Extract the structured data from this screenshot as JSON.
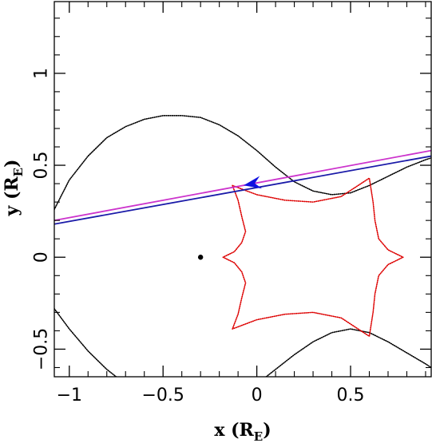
{
  "chart_data": {
    "type": "line",
    "title": "",
    "xlabel": "x (R_E)",
    "ylabel": "y (R_E)",
    "xlabel_parts": {
      "main": "x (R",
      "sub": "E",
      "close": ")"
    },
    "ylabel_parts": {
      "main": "y (R",
      "sub": "E",
      "close": ")"
    },
    "xlim": [
      -1.08,
      0.93
    ],
    "ylim": [
      -0.65,
      1.39
    ],
    "xticks": [
      {
        "value": -1,
        "label": "−1"
      },
      {
        "value": -0.5,
        "label": "−0.5"
      },
      {
        "value": 0,
        "label": "0"
      },
      {
        "value": 0.5,
        "label": "0.5"
      }
    ],
    "yticks": [
      {
        "value": -0.5,
        "label": "−0.5"
      },
      {
        "value": 0,
        "label": "0"
      },
      {
        "value": 0.5,
        "label": "0.5"
      },
      {
        "value": 1,
        "label": "1"
      }
    ],
    "grid": false,
    "legend": "none",
    "series": [
      {
        "id": "critical-curve-upper",
        "color": "#000000",
        "style": "dotted-line",
        "x": [
          -1.08,
          -1.0,
          -0.9,
          -0.8,
          -0.7,
          -0.6,
          -0.5,
          -0.4,
          -0.3,
          -0.2,
          -0.1,
          0.0,
          0.1,
          0.2,
          0.3,
          0.4,
          0.5,
          0.6,
          0.7,
          0.8,
          0.9,
          0.93
        ],
        "y": [
          0.26,
          0.42,
          0.55,
          0.65,
          0.71,
          0.75,
          0.77,
          0.77,
          0.76,
          0.72,
          0.66,
          0.58,
          0.49,
          0.41,
          0.36,
          0.34,
          0.35,
          0.39,
          0.44,
          0.49,
          0.53,
          0.54
        ]
      },
      {
        "id": "critical-curve-lower-right",
        "color": "#000000",
        "style": "dotted-line",
        "x": [
          0.05,
          0.1,
          0.2,
          0.3,
          0.4,
          0.5,
          0.6,
          0.7,
          0.8,
          0.9,
          0.93
        ],
        "y": [
          -0.65,
          -0.61,
          -0.53,
          -0.46,
          -0.41,
          -0.39,
          -0.41,
          -0.46,
          -0.52,
          -0.58,
          -0.6
        ]
      },
      {
        "id": "critical-curve-lower-left",
        "color": "#000000",
        "style": "dotted-line",
        "x": [
          -1.08,
          -1.0,
          -0.9,
          -0.8,
          -0.75
        ],
        "y": [
          -0.28,
          -0.39,
          -0.51,
          -0.61,
          -0.65
        ]
      },
      {
        "id": "caustic",
        "color": "#dd0000",
        "style": "dotted-line",
        "x": [
          -0.13,
          -0.1,
          -0.08,
          -0.06,
          -0.08,
          -0.12,
          -0.18,
          -0.12,
          -0.08,
          -0.06,
          -0.08,
          -0.1,
          -0.13,
          0.0,
          0.15,
          0.3,
          0.45,
          0.6,
          0.62,
          0.63,
          0.65,
          0.7,
          0.78,
          0.7,
          0.65,
          0.63,
          0.62,
          0.6,
          0.45,
          0.3,
          0.15,
          0.0,
          -0.13
        ],
        "y": [
          0.39,
          0.31,
          0.22,
          0.14,
          0.08,
          0.03,
          0.0,
          -0.03,
          -0.08,
          -0.14,
          -0.22,
          -0.31,
          -0.39,
          -0.34,
          -0.31,
          -0.3,
          -0.33,
          -0.43,
          -0.3,
          -0.2,
          -0.1,
          -0.04,
          0.0,
          0.04,
          0.1,
          0.2,
          0.3,
          0.43,
          0.33,
          0.3,
          0.31,
          0.34,
          0.39
        ]
      },
      {
        "id": "trajectory-magenta",
        "color": "#cc33cc",
        "style": "line",
        "x": [
          -1.08,
          0.93
        ],
        "y": [
          0.2,
          0.58
        ]
      },
      {
        "id": "trajectory-blue",
        "color": "#1a1aa8",
        "style": "line",
        "x": [
          -1.08,
          0.93
        ],
        "y": [
          0.18,
          0.55
        ]
      }
    ],
    "arrow": {
      "x": -0.02,
      "y": 0.4,
      "direction": "left",
      "color": "#1010e0"
    },
    "lens_point": {
      "x": -0.3,
      "y": 0.0,
      "color": "#000000"
    }
  }
}
